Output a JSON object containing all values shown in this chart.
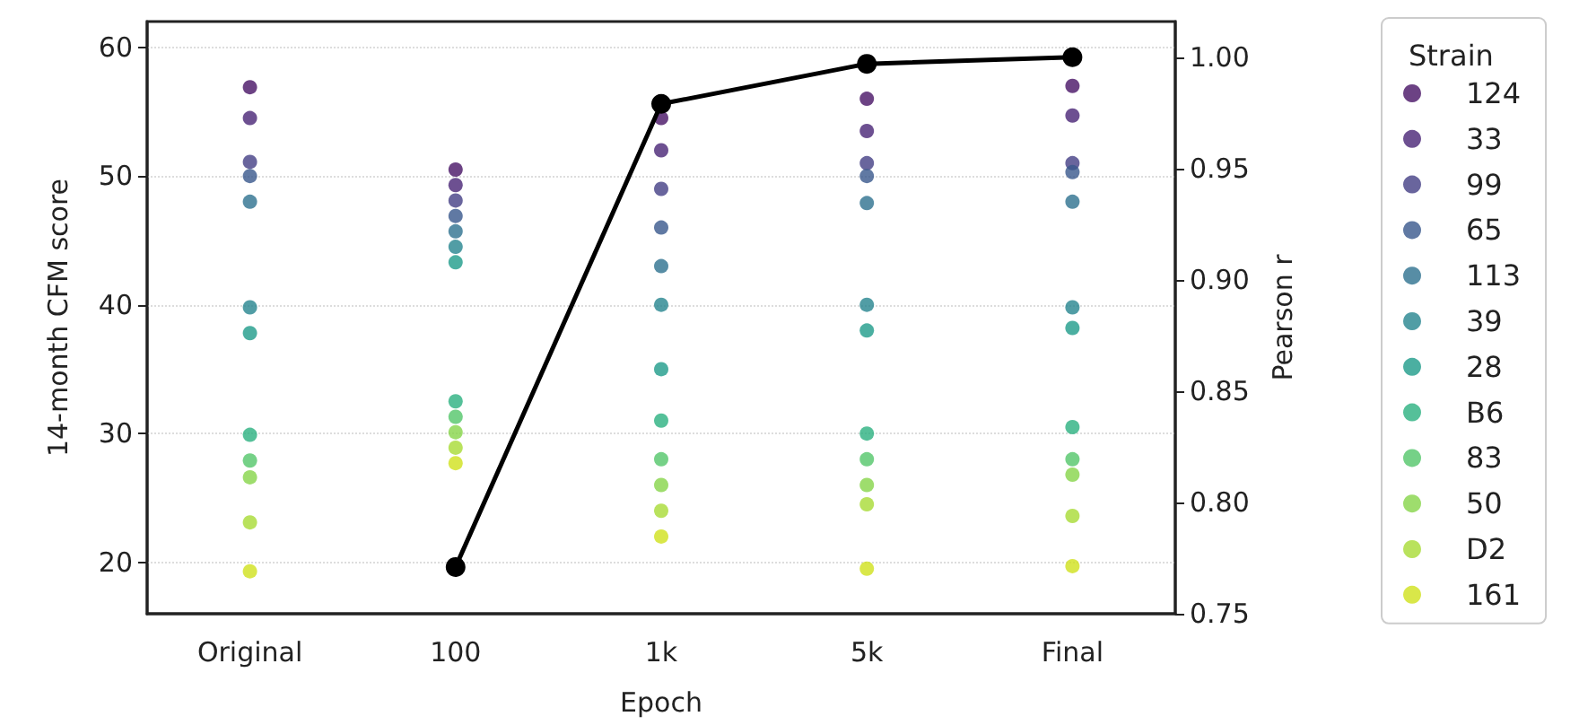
{
  "chart_data": {
    "type": "scatter",
    "xlabel": "Epoch",
    "ylabel": "14-month CFM score",
    "y2label": "Pearson r",
    "legend_title": "Strain",
    "categories": [
      "Original",
      "100",
      "1k",
      "5k",
      "Final"
    ],
    "ylim": [
      16,
      62
    ],
    "yticks": [
      20,
      30,
      40,
      50,
      60
    ],
    "y2lim": [
      0.75,
      1.016
    ],
    "y2ticks": [
      {
        "value": 0.75,
        "label": "0.75"
      },
      {
        "value": 0.8,
        "label": "0.80"
      },
      {
        "value": 0.85,
        "label": "0.85"
      },
      {
        "value": 0.9,
        "label": "0.90"
      },
      {
        "value": 0.95,
        "label": "0.95"
      },
      {
        "value": 1.0,
        "label": "1.00"
      }
    ],
    "grid": "y",
    "legend": "right",
    "marker": "circle",
    "series": [
      {
        "name": "124",
        "color": "#471365",
        "values": [
          56.9,
          50.5,
          54.5,
          56,
          57
        ]
      },
      {
        "name": "33",
        "color": "#482475",
        "values": [
          54.5,
          49.3,
          52,
          53.5,
          54.7
        ]
      },
      {
        "name": "99",
        "color": "#433e85",
        "values": [
          51.1,
          48.1,
          49,
          51,
          51
        ]
      },
      {
        "name": "65",
        "color": "#38588c",
        "values": [
          50,
          46.9,
          46,
          50,
          50.3
        ]
      },
      {
        "name": "113",
        "color": "#2d708e",
        "values": [
          48,
          45.7,
          43,
          47.9,
          48
        ]
      },
      {
        "name": "39",
        "color": "#25858e",
        "values": [
          39.8,
          44.5,
          40,
          40,
          39.8
        ]
      },
      {
        "name": "28",
        "color": "#1e9b8a",
        "values": [
          37.8,
          43.3,
          35,
          38,
          38.2
        ]
      },
      {
        "name": "B6",
        "color": "#2ab07f",
        "values": [
          29.9,
          32.5,
          31,
          30,
          30.5
        ]
      },
      {
        "name": "83",
        "color": "#52c569",
        "values": [
          27.9,
          31.3,
          28,
          28,
          28
        ]
      },
      {
        "name": "50",
        "color": "#86d549",
        "values": [
          26.6,
          30.1,
          26,
          26,
          26.8
        ]
      },
      {
        "name": "D2",
        "color": "#a8db34",
        "values": [
          23.1,
          28.9,
          24,
          24.5,
          23.6
        ]
      },
      {
        "name": "161",
        "color": "#d0e11c",
        "values": [
          19.3,
          27.7,
          22,
          19.5,
          19.7
        ]
      },
      {
        "type": "line",
        "axis": "y2",
        "color": "#000000",
        "values": [
          null,
          0.771,
          0.979,
          0.997,
          1.0
        ]
      }
    ]
  }
}
